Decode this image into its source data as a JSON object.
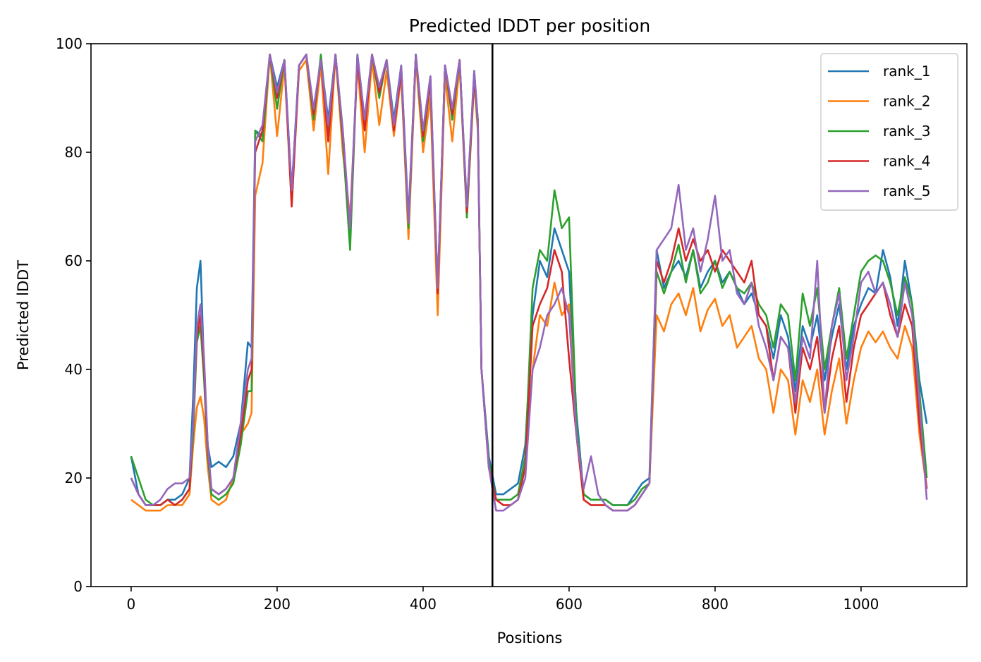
{
  "chart_data": {
    "type": "line",
    "title": "Predicted lDDT per position",
    "xlabel": "Positions",
    "ylabel": "Predicted lDDT",
    "xlim": [
      -55,
      1145
    ],
    "ylim": [
      0,
      100
    ],
    "xticks": [
      0,
      200,
      400,
      600,
      800,
      1000
    ],
    "yticks": [
      0,
      20,
      40,
      60,
      80,
      100
    ],
    "grid": false,
    "legend_position": "top-right",
    "vertical_line": {
      "x": 495,
      "color": "#000000"
    },
    "x": [
      0,
      10,
      20,
      30,
      40,
      50,
      60,
      70,
      80,
      85,
      90,
      95,
      100,
      105,
      110,
      120,
      130,
      140,
      150,
      160,
      165,
      170,
      180,
      190,
      200,
      210,
      220,
      230,
      240,
      250,
      260,
      270,
      280,
      290,
      300,
      310,
      320,
      330,
      340,
      350,
      360,
      370,
      380,
      390,
      400,
      410,
      420,
      430,
      440,
      450,
      460,
      470,
      475,
      480,
      490,
      500,
      510,
      520,
      530,
      540,
      550,
      560,
      570,
      580,
      590,
      600,
      610,
      620,
      630,
      640,
      650,
      660,
      670,
      680,
      690,
      700,
      710,
      720,
      730,
      740,
      750,
      760,
      770,
      780,
      790,
      800,
      810,
      820,
      830,
      840,
      850,
      860,
      870,
      880,
      890,
      900,
      910,
      920,
      930,
      940,
      950,
      960,
      970,
      980,
      990,
      1000,
      1010,
      1020,
      1030,
      1040,
      1050,
      1060,
      1070,
      1080,
      1090
    ],
    "series": [
      {
        "name": "rank_1",
        "color": "#1f77b4",
        "values": [
          24,
          17,
          15,
          15,
          15,
          16,
          16,
          17,
          20,
          35,
          55,
          60,
          40,
          26,
          22,
          23,
          22,
          24,
          30,
          45,
          44,
          84,
          83,
          98,
          92,
          97,
          73,
          96,
          98,
          88,
          97,
          86,
          98,
          84,
          65,
          98,
          86,
          98,
          92,
          97,
          86,
          96,
          68,
          98,
          84,
          94,
          52,
          96,
          88,
          97,
          70,
          95,
          86,
          40,
          24,
          17,
          17,
          18,
          19,
          26,
          50,
          60,
          57,
          66,
          62,
          58,
          32,
          17,
          16,
          16,
          16,
          15,
          15,
          15,
          17,
          19,
          20,
          62,
          55,
          58,
          60,
          57,
          62,
          55,
          58,
          60,
          56,
          58,
          55,
          52,
          54,
          50,
          48,
          42,
          50,
          46,
          36,
          48,
          44,
          50,
          38,
          46,
          52,
          40,
          48,
          52,
          55,
          54,
          62,
          57,
          48,
          60,
          52,
          38,
          30
        ]
      },
      {
        "name": "rank_2",
        "color": "#ff7f0e",
        "values": [
          16,
          15,
          14,
          14,
          14,
          15,
          15,
          15,
          17,
          26,
          33,
          35,
          31,
          22,
          16,
          15,
          16,
          20,
          28,
          30,
          32,
          72,
          78,
          98,
          83,
          96,
          70,
          95,
          97,
          84,
          96,
          76,
          98,
          80,
          68,
          96,
          80,
          97,
          85,
          95,
          83,
          94,
          64,
          97,
          80,
          90,
          50,
          94,
          82,
          96,
          68,
          93,
          84,
          40,
          22,
          16,
          15,
          15,
          16,
          23,
          40,
          50,
          48,
          56,
          50,
          52,
          28,
          16,
          15,
          15,
          15,
          14,
          14,
          14,
          15,
          17,
          19,
          50,
          47,
          52,
          54,
          50,
          55,
          47,
          51,
          53,
          48,
          50,
          44,
          46,
          48,
          42,
          40,
          32,
          40,
          38,
          28,
          38,
          34,
          40,
          28,
          36,
          42,
          30,
          38,
          44,
          47,
          45,
          47,
          44,
          42,
          48,
          44,
          28,
          18
        ]
      },
      {
        "name": "rank_3",
        "color": "#2ca02c",
        "values": [
          24,
          20,
          16,
          15,
          15,
          16,
          15,
          16,
          18,
          28,
          45,
          48,
          38,
          24,
          17,
          16,
          17,
          19,
          26,
          36,
          36,
          84,
          82,
          98,
          88,
          97,
          72,
          96,
          98,
          86,
          98,
          84,
          98,
          82,
          62,
          98,
          85,
          98,
          90,
          97,
          85,
          95,
          66,
          98,
          82,
          93,
          55,
          96,
          86,
          97,
          68,
          94,
          85,
          40,
          23,
          16,
          16,
          16,
          17,
          24,
          55,
          62,
          60,
          73,
          66,
          68,
          30,
          17,
          16,
          16,
          16,
          15,
          15,
          15,
          16,
          18,
          19,
          58,
          54,
          58,
          63,
          56,
          62,
          54,
          56,
          60,
          55,
          58,
          55,
          54,
          56,
          52,
          50,
          44,
          52,
          50,
          38,
          54,
          48,
          55,
          40,
          48,
          55,
          42,
          50,
          58,
          60,
          61,
          60,
          56,
          50,
          57,
          52,
          36,
          20
        ]
      },
      {
        "name": "rank_4",
        "color": "#d62728",
        "values": [
          20,
          17,
          15,
          15,
          15,
          16,
          15,
          16,
          18,
          30,
          46,
          50,
          40,
          25,
          18,
          17,
          18,
          20,
          28,
          38,
          40,
          80,
          84,
          98,
          90,
          97,
          70,
          96,
          98,
          87,
          97,
          82,
          98,
          83,
          66,
          97,
          84,
          98,
          91,
          97,
          84,
          95,
          67,
          98,
          83,
          93,
          54,
          96,
          87,
          97,
          69,
          94,
          86,
          40,
          22,
          16,
          15,
          15,
          16,
          22,
          48,
          52,
          55,
          62,
          58,
          42,
          28,
          16,
          15,
          15,
          15,
          14,
          14,
          14,
          15,
          17,
          19,
          60,
          56,
          60,
          66,
          60,
          64,
          60,
          62,
          58,
          62,
          60,
          58,
          56,
          60,
          50,
          48,
          38,
          46,
          44,
          32,
          44,
          40,
          46,
          32,
          42,
          48,
          34,
          44,
          50,
          52,
          54,
          56,
          50,
          46,
          52,
          48,
          30,
          18
        ]
      },
      {
        "name": "rank_5",
        "color": "#9467bd",
        "values": [
          20,
          17,
          15,
          15,
          16,
          18,
          19,
          19,
          20,
          30,
          48,
          52,
          42,
          26,
          18,
          17,
          18,
          20,
          30,
          40,
          42,
          82,
          85,
          98,
          91,
          97,
          73,
          96,
          98,
          88,
          97,
          85,
          98,
          84,
          66,
          98,
          86,
          98,
          92,
          97,
          85,
          96,
          67,
          98,
          84,
          94,
          55,
          96,
          88,
          97,
          70,
          95,
          86,
          40,
          22,
          14,
          14,
          15,
          16,
          20,
          40,
          44,
          50,
          52,
          55,
          50,
          28,
          18,
          24,
          17,
          15,
          14,
          14,
          14,
          15,
          17,
          19,
          62,
          64,
          66,
          74,
          62,
          66,
          58,
          64,
          72,
          60,
          62,
          54,
          52,
          56,
          48,
          44,
          38,
          46,
          44,
          34,
          46,
          42,
          60,
          32,
          48,
          54,
          38,
          46,
          56,
          58,
          54,
          56,
          52,
          46,
          56,
          50,
          34,
          16
        ]
      }
    ]
  }
}
